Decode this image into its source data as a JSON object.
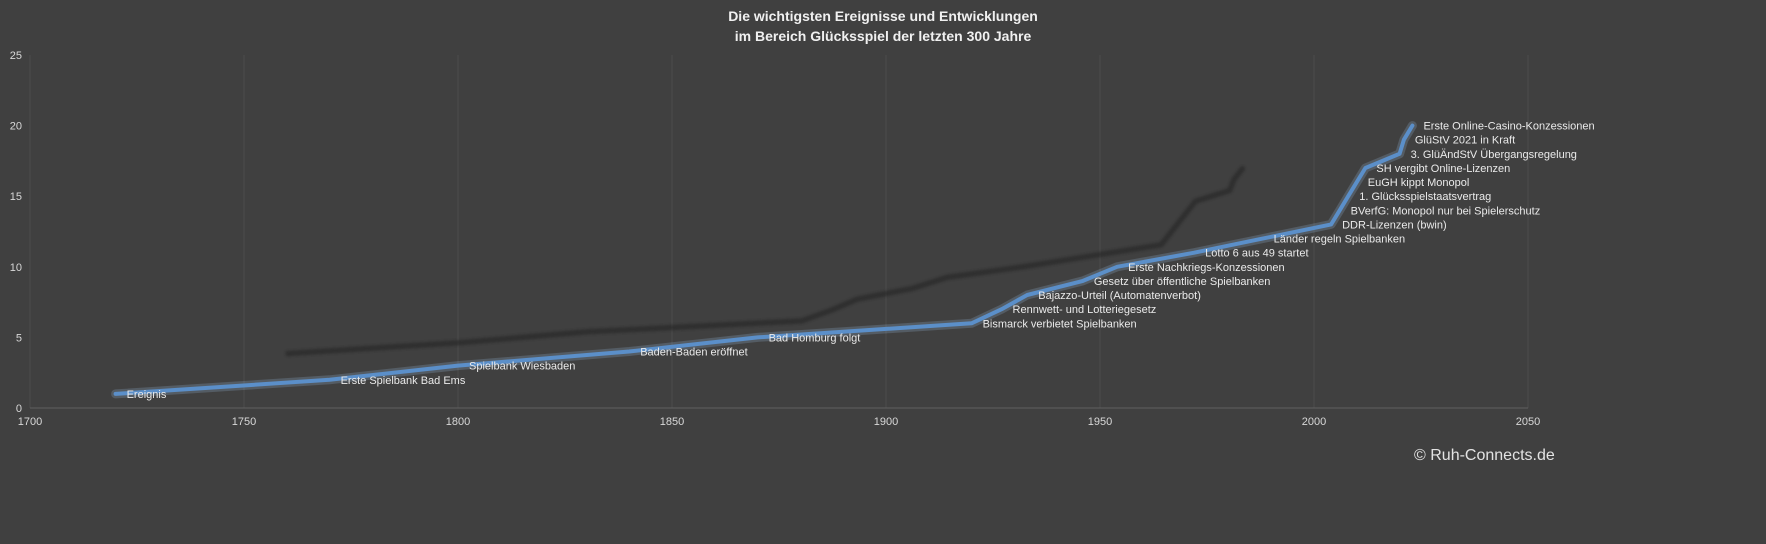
{
  "title": {
    "line1": "Die wichtigsten Ereignisse und Entwicklungen",
    "line2": "im Bereich Glücksspiel der letzten 300 Jahre"
  },
  "footer": {
    "copyright": "© Ruh-Connects.de"
  },
  "chart_data": {
    "type": "line",
    "title": "Die wichtigsten Ereignisse und Entwicklungen im Bereich Glücksspiel der letzten 300 Jahre",
    "xlabel": "",
    "ylabel": "",
    "xlim": [
      1700,
      2050
    ],
    "ylim": [
      0,
      25
    ],
    "x_ticks": [
      1700,
      1750,
      1800,
      1850,
      1900,
      1950,
      2000,
      2050
    ],
    "y_ticks": [
      0,
      5,
      10,
      15,
      20,
      25
    ],
    "grid": "vertical-only",
    "legend": "none",
    "series": [
      {
        "name": "Ereignis",
        "points": [
          {
            "x": 1720,
            "y": 1,
            "label": "Ereignis"
          },
          {
            "x": 1770,
            "y": 2,
            "label": "Erste Spielbank Bad Ems"
          },
          {
            "x": 1800,
            "y": 3,
            "label": "Spielbank Wiesbaden"
          },
          {
            "x": 1840,
            "y": 4,
            "label": "Baden-Baden eröffnet"
          },
          {
            "x": 1870,
            "y": 5,
            "label": "Bad Homburg folgt"
          },
          {
            "x": 1920,
            "y": 6,
            "label": "Bismarck verbietet Spielbanken"
          },
          {
            "x": 1927,
            "y": 7,
            "label": "Rennwett- und Lotteriegesetz"
          },
          {
            "x": 1933,
            "y": 8,
            "label": "Bajazzo-Urteil (Automatenverbot)"
          },
          {
            "x": 1946,
            "y": 9,
            "label": "Gesetz über öffentliche Spielbanken"
          },
          {
            "x": 1954,
            "y": 10,
            "label": "Erste Nachkriegs-Konzessionen"
          },
          {
            "x": 1972,
            "y": 11,
            "label": "Lotto 6 aus 49 startet"
          },
          {
            "x": 1988,
            "y": 12,
            "label": "Länder regeln Spielbanken"
          },
          {
            "x": 2004,
            "y": 13,
            "label": "DDR-Lizenzen (bwin)"
          },
          {
            "x": 2006,
            "y": 14,
            "label": "BVerfG: Monopol nur bei Spielerschutz"
          },
          {
            "x": 2008,
            "y": 15,
            "label": "1. Glücksspielstaatsvertrag"
          },
          {
            "x": 2010,
            "y": 16,
            "label": "EuGH kippt Monopol"
          },
          {
            "x": 2012,
            "y": 17,
            "label": "SH vergibt Online-Lizenzen"
          },
          {
            "x": 2020,
            "y": 18,
            "label": "3. GlüÄndStV Übergangsregelung"
          },
          {
            "x": 2021,
            "y": 19,
            "label": "GlüStV 2021 in Kraft"
          },
          {
            "x": 2023,
            "y": 20,
            "label": "Erste Online-Casino-Konzessionen"
          }
        ]
      }
    ],
    "colors": {
      "background": "#404040",
      "grid": "#4d4d4d",
      "axis": "#606060",
      "tick_text": "#d8d8d8",
      "label_text": "#eaeaea",
      "title_text": "#f0f0f0",
      "line": "#5b8fc9",
      "line_glow": "#9dbfe3",
      "shadow": "#232323"
    }
  }
}
